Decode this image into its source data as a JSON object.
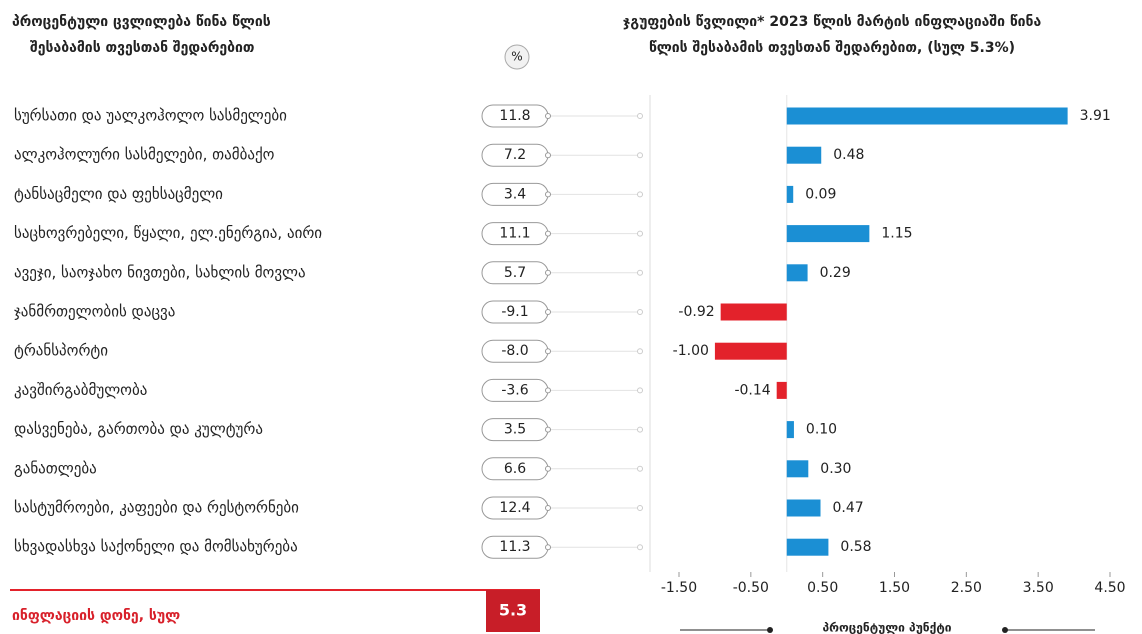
{
  "annual_change": {
    "title": [
      "პროცენტული ცვლილება წინა წლის",
      "შესაბამის თვესთან შედარებით"
    ],
    "unit": "%",
    "values": [
      11.8,
      7.2,
      3.4,
      11.1,
      5.7,
      -9.1,
      -8.0,
      -3.6,
      3.5,
      6.6,
      12.4,
      11.3
    ],
    "value_labels": [
      "11.8",
      "7.2",
      "3.4",
      "11.1",
      "5.7",
      "-9.1",
      "-8.0",
      "-3.6",
      "3.5",
      "6.6",
      "12.4",
      "11.3"
    ],
    "total_label": "ინფლაციის დონე, სულ",
    "total_value": 5.3
  },
  "chart_data": {
    "type": "hbar",
    "title": [
      "ჯგუფების წვლილი* 2023 წლის მარტის ინფლაციაში წინა",
      "წლის შესაბამის თვესთან შედარებით, (სულ 5.3%)"
    ],
    "categories": [
      "სურსათი და უალკოჰოლო სასმელები",
      "ალკოჰოლური სასმელები, თამბაქო",
      "ტანსაცმელი და ფეხსაცმელი",
      "საცხოვრებელი, წყალი, ელ.ენერგია, აირი",
      "ავეჯი, საოჯახო ნივთები, სახლის მოვლა",
      "ჯანმრთელობის დაცვა",
      "ტრანსპორტი",
      "კავშირგაბმულობა",
      "დასვენება, გართობა და კულტურა",
      "განათლება",
      "სასტუმროები, კაფეები და რესტორნები",
      "სხვადასხვა საქონელი და მომსახურება"
    ],
    "values": [
      3.91,
      0.48,
      0.09,
      1.15,
      0.29,
      -0.92,
      -1.0,
      -0.14,
      0.1,
      0.3,
      0.47,
      0.58
    ],
    "value_labels": [
      "3.91",
      "0.48",
      "0.09",
      "1.15",
      "0.29",
      "-0.92",
      "-1.00",
      "-0.14",
      "0.10",
      "0.30",
      "0.47",
      "0.58"
    ],
    "positive_color": "#1b8fd4",
    "negative_color": "#e3222b",
    "xlabel": "პროცენტული პუნქტი",
    "xlim": [
      -1.5,
      4.5
    ],
    "xticks": [
      {
        "value": -1.5,
        "label": "-1.50"
      },
      {
        "value": -0.5,
        "label": "-0.50"
      },
      {
        "value": 0.5,
        "label": "0.50"
      },
      {
        "value": 1.5,
        "label": "1.50"
      },
      {
        "value": 2.5,
        "label": "2.50"
      },
      {
        "value": 3.5,
        "label": "3.50"
      },
      {
        "value": 4.5,
        "label": "4.50"
      }
    ]
  }
}
